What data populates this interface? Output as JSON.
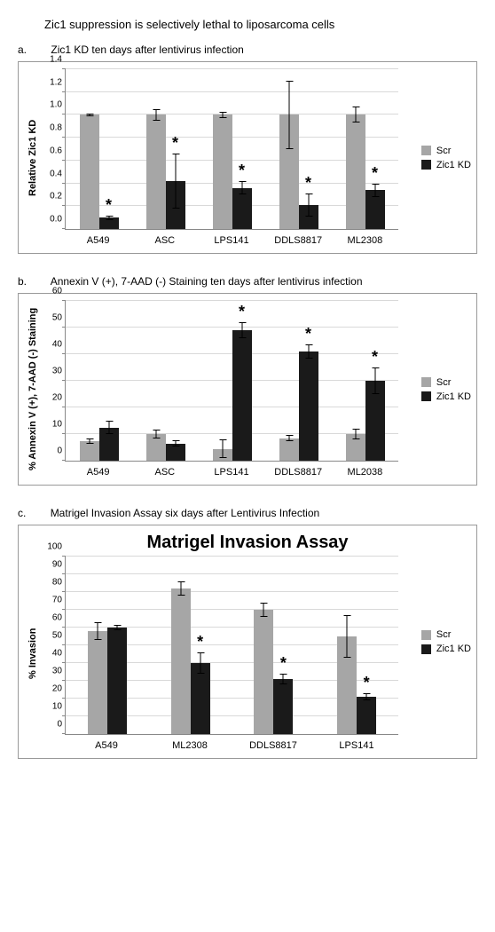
{
  "figure_title": "Zic1 suppression is selectively lethal to liposarcoma cells",
  "legend": {
    "scr": "Scr",
    "kd": "Zic1 KD"
  },
  "colors": {
    "scr": "#a6a6a6",
    "kd": "#1a1a1a",
    "grid": "#d9d9d9",
    "axis": "#888888",
    "bg": "#ffffff"
  },
  "panel_a": {
    "letter": "a.",
    "title": "Zic1 KD  ten days after lentivirus infection",
    "ylabel": "Relative Zic1 KD",
    "ymax": 1.4,
    "ytick_step": 0.2,
    "categories": [
      "A549",
      "ASC",
      "LPS141",
      "DDLS8817",
      "ML2308"
    ],
    "scr": {
      "values": [
        1.0,
        1.0,
        1.0,
        1.0,
        1.0
      ],
      "err": [
        0.01,
        0.05,
        0.03,
        0.3,
        0.07
      ]
    },
    "kd": {
      "values": [
        0.1,
        0.42,
        0.36,
        0.21,
        0.34
      ],
      "err": [
        0.02,
        0.24,
        0.06,
        0.1,
        0.06
      ],
      "sig": [
        true,
        true,
        true,
        true,
        true
      ]
    }
  },
  "panel_b": {
    "letter": "b.",
    "title": "Annexin V (+), 7-AAD (-) Staining ten days after lentivirus infection",
    "ylabel": "% Annexin V (+), 7-AAD (-) Staining",
    "ymax": 60,
    "ytick_step": 10,
    "categories": [
      "A549",
      "ASC",
      "LPS141",
      "DDLS8817",
      "ML2038"
    ],
    "scr": {
      "values": [
        7.5,
        10.0,
        4.5,
        8.5,
        10.0
      ],
      "err": [
        1.0,
        1.8,
        3.5,
        1.3,
        2.0
      ]
    },
    "kd": {
      "values": [
        12.5,
        6.5,
        49.0,
        41.0,
        30.0
      ],
      "err": [
        2.5,
        1.2,
        3.0,
        2.8,
        5.0
      ],
      "sig": [
        false,
        false,
        true,
        true,
        true
      ]
    }
  },
  "panel_c": {
    "letter": "c.",
    "title": "Matrigel Invasion Assay six days after Lentivirus Infection",
    "chart_title": "Matrigel Invasion Assay",
    "ylabel": "% Invasion",
    "ymax": 100,
    "ytick_step": 10,
    "categories": [
      "A549",
      "ML2308",
      "DDLS8817",
      "LPS141"
    ],
    "scr": {
      "values": [
        58,
        82,
        70,
        55
      ],
      "err": [
        5,
        4,
        4,
        12
      ]
    },
    "kd": {
      "values": [
        60,
        40,
        31,
        21
      ],
      "err": [
        1.5,
        6,
        3,
        2
      ],
      "sig": [
        false,
        true,
        true,
        true
      ]
    }
  }
}
